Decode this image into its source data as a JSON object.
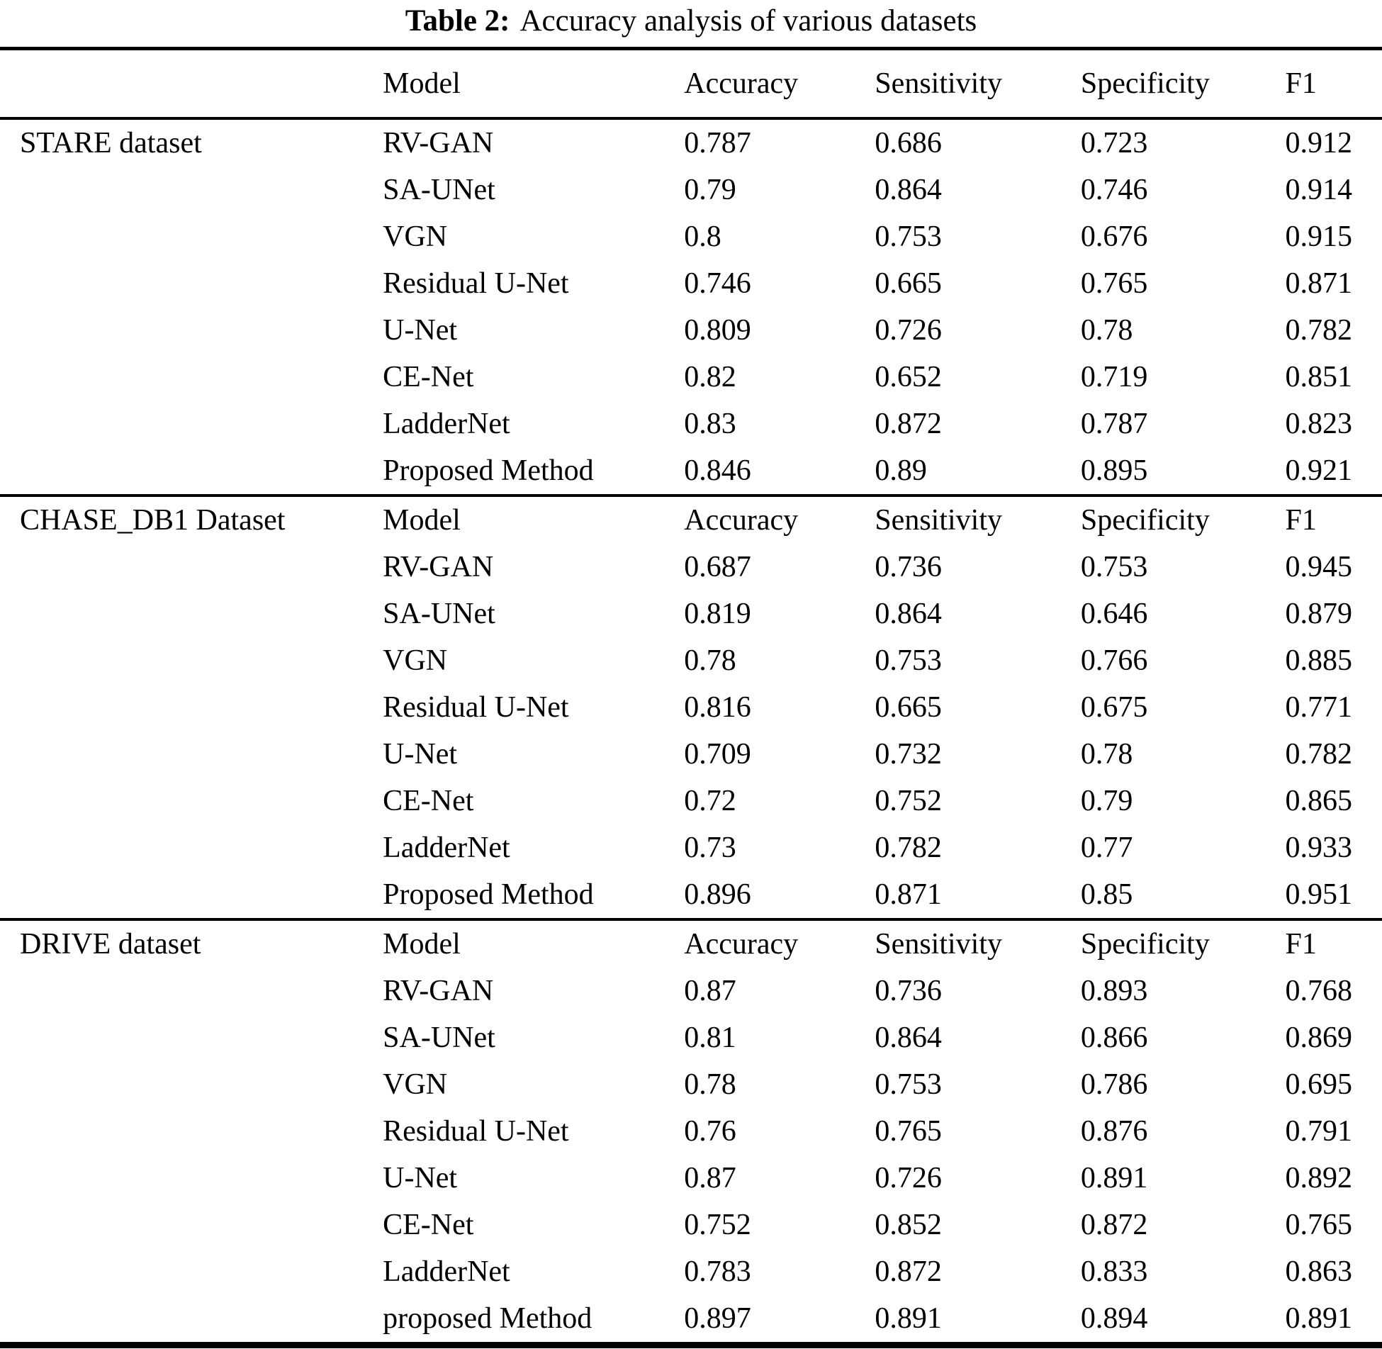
{
  "caption": {
    "label": "Table 2:",
    "text": "Accuracy analysis of various datasets"
  },
  "columns": [
    "Model",
    "Accuracy",
    "Sensitivity",
    "Specificity",
    "F1"
  ],
  "sections": [
    {
      "dataset": "STARE dataset",
      "header_in_section": false,
      "rows": [
        {
          "model": "RV-GAN",
          "accuracy": "0.787",
          "sensitivity": "0.686",
          "specificity": "0.723",
          "f1": "0.912"
        },
        {
          "model": "SA-UNet",
          "accuracy": "0.79",
          "sensitivity": "0.864",
          "specificity": "0.746",
          "f1": "0.914"
        },
        {
          "model": "VGN",
          "accuracy": "0.8",
          "sensitivity": "0.753",
          "specificity": "0.676",
          "f1": "0.915"
        },
        {
          "model": "Residual U-Net",
          "accuracy": "0.746",
          "sensitivity": "0.665",
          "specificity": "0.765",
          "f1": "0.871"
        },
        {
          "model": "U-Net",
          "accuracy": "0.809",
          "sensitivity": "0.726",
          "specificity": "0.78",
          "f1": "0.782"
        },
        {
          "model": "CE-Net",
          "accuracy": "0.82",
          "sensitivity": "0.652",
          "specificity": "0.719",
          "f1": "0.851"
        },
        {
          "model": "LadderNet",
          "accuracy": "0.83",
          "sensitivity": "0.872",
          "specificity": "0.787",
          "f1": "0.823"
        },
        {
          "model": "Proposed Method",
          "accuracy": "0.846",
          "sensitivity": "0.89",
          "specificity": "0.895",
          "f1": "0.921"
        }
      ]
    },
    {
      "dataset": "CHASE_DB1 Dataset",
      "header_in_section": true,
      "rows": [
        {
          "model": "RV-GAN",
          "accuracy": "0.687",
          "sensitivity": "0.736",
          "specificity": "0.753",
          "f1": "0.945"
        },
        {
          "model": "SA-UNet",
          "accuracy": "0.819",
          "sensitivity": "0.864",
          "specificity": "0.646",
          "f1": "0.879"
        },
        {
          "model": "VGN",
          "accuracy": "0.78",
          "sensitivity": "0.753",
          "specificity": "0.766",
          "f1": "0.885"
        },
        {
          "model": "Residual U-Net",
          "accuracy": "0.816",
          "sensitivity": "0.665",
          "specificity": "0.675",
          "f1": "0.771"
        },
        {
          "model": "U-Net",
          "accuracy": "0.709",
          "sensitivity": "0.732",
          "specificity": "0.78",
          "f1": "0.782"
        },
        {
          "model": "CE-Net",
          "accuracy": "0.72",
          "sensitivity": "0.752",
          "specificity": "0.79",
          "f1": "0.865"
        },
        {
          "model": "LadderNet",
          "accuracy": "0.73",
          "sensitivity": "0.782",
          "specificity": "0.77",
          "f1": "0.933"
        },
        {
          "model": "Proposed Method",
          "accuracy": "0.896",
          "sensitivity": "0.871",
          "specificity": "0.85",
          "f1": "0.951"
        }
      ]
    },
    {
      "dataset": "DRIVE dataset",
      "header_in_section": true,
      "rows": [
        {
          "model": "RV-GAN",
          "accuracy": "0.87",
          "sensitivity": "0.736",
          "specificity": "0.893",
          "f1": "0.768"
        },
        {
          "model": "SA-UNet",
          "accuracy": "0.81",
          "sensitivity": "0.864",
          "specificity": "0.866",
          "f1": "0.869"
        },
        {
          "model": "VGN",
          "accuracy": "0.78",
          "sensitivity": "0.753",
          "specificity": "0.786",
          "f1": "0.695"
        },
        {
          "model": "Residual U-Net",
          "accuracy": "0.76",
          "sensitivity": "0.765",
          "specificity": "0.876",
          "f1": "0.791"
        },
        {
          "model": "U-Net",
          "accuracy": "0.87",
          "sensitivity": "0.726",
          "specificity": "0.891",
          "f1": "0.892"
        },
        {
          "model": "CE-Net",
          "accuracy": "0.752",
          "sensitivity": "0.852",
          "specificity": "0.872",
          "f1": "0.765"
        },
        {
          "model": "LadderNet",
          "accuracy": "0.783",
          "sensitivity": "0.872",
          "specificity": "0.833",
          "f1": "0.863"
        },
        {
          "model": "proposed Method",
          "accuracy": "0.897",
          "sensitivity": "0.891",
          "specificity": "0.894",
          "f1": "0.891"
        }
      ]
    }
  ]
}
